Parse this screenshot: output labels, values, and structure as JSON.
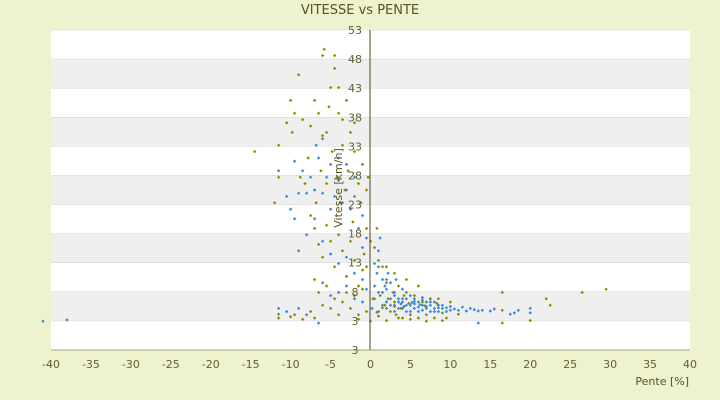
{
  "chart_data": {
    "type": "scatter",
    "title": "VITESSE vs PENTE",
    "xlabel": "Pente [%]",
    "ylabel": "Vitesse [km/h]",
    "xlim": [
      -40,
      40
    ],
    "ylim": [
      3,
      53
    ],
    "xticks": [
      "-40",
      "-35",
      "-30",
      "-25",
      "-20",
      "-15",
      "-10",
      "-5",
      "0",
      "5",
      "10",
      "15",
      "20",
      "25",
      "30",
      "35",
      "40"
    ],
    "yticks": [
      "3",
      "3",
      "8",
      "13",
      "18",
      "23",
      "28",
      "33",
      "38",
      "43",
      "48",
      "53"
    ],
    "grid": "horizontal-bands",
    "legend": "none",
    "colors": {
      "background": "#eef2cf",
      "plot": "#ffffff",
      "band": "#efefef",
      "series1": "#3a86d6",
      "series2": "#8a8a00",
      "axis": "#4a4a20"
    },
    "series": [
      {
        "color": "#3a86d6",
        "points": [
          [
            -41,
            7.5
          ],
          [
            -38,
            7.7
          ],
          [
            -11.5,
            9.5
          ],
          [
            -10.5,
            9
          ],
          [
            -9,
            9.5
          ],
          [
            -8,
            8.5
          ],
          [
            -6.5,
            7.2
          ],
          [
            -11.5,
            31
          ],
          [
            -10.5,
            27
          ],
          [
            -10,
            25
          ],
          [
            -9.5,
            23.5
          ],
          [
            -9.5,
            32.5
          ],
          [
            -9,
            27.5
          ],
          [
            -8.5,
            31
          ],
          [
            -8,
            27.5
          ],
          [
            -7.5,
            30
          ],
          [
            -7,
            28
          ],
          [
            -6.8,
            35
          ],
          [
            -6.5,
            33
          ],
          [
            -6,
            36
          ],
          [
            -6,
            27.5
          ],
          [
            -5.5,
            30
          ],
          [
            -5,
            32
          ],
          [
            -5,
            25
          ],
          [
            -4.5,
            27
          ],
          [
            -4,
            33
          ],
          [
            -4,
            29.5
          ],
          [
            -3.5,
            26
          ],
          [
            -3,
            28
          ],
          [
            -3,
            32
          ],
          [
            -2.5,
            25
          ],
          [
            -2,
            27
          ],
          [
            -2,
            30
          ],
          [
            -1.5,
            22
          ],
          [
            -1,
            24
          ],
          [
            -1,
            19
          ],
          [
            -0.5,
            20.5
          ],
          [
            -9,
            18.5
          ],
          [
            -8,
            21
          ],
          [
            -7,
            23.5
          ],
          [
            -6,
            20
          ],
          [
            -5,
            18
          ],
          [
            -4,
            16.5
          ],
          [
            -3,
            17.5
          ],
          [
            -2,
            15
          ],
          [
            -1,
            14
          ],
          [
            -0.5,
            12.5
          ],
          [
            -6,
            13.5
          ],
          [
            -5,
            11.5
          ],
          [
            -4,
            12
          ],
          [
            -3,
            13
          ],
          [
            -2,
            11
          ],
          [
            -1,
            10.5
          ],
          [
            0.2,
            9.5
          ],
          [
            0.5,
            11
          ],
          [
            0.5,
            13
          ],
          [
            0.8,
            15
          ],
          [
            1,
            16
          ],
          [
            1,
            18.5
          ],
          [
            1.2,
            20.5
          ],
          [
            1.5,
            14
          ],
          [
            1.5,
            12
          ],
          [
            1.8,
            13
          ],
          [
            2,
            10.5
          ],
          [
            2,
            12.5
          ],
          [
            2.2,
            15
          ],
          [
            2.5,
            11
          ],
          [
            2.5,
            13.5
          ],
          [
            3,
            10
          ],
          [
            3,
            12
          ],
          [
            3.2,
            14
          ],
          [
            3.5,
            11
          ],
          [
            3.5,
            9.5
          ],
          [
            4,
            10.5
          ],
          [
            4,
            12.5
          ],
          [
            4.5,
            11
          ],
          [
            4.5,
            9
          ],
          [
            5,
            10
          ],
          [
            5,
            11.5
          ],
          [
            5.5,
            9.5
          ],
          [
            5.5,
            11
          ],
          [
            6,
            10.5
          ],
          [
            6,
            9
          ],
          [
            6.5,
            10
          ],
          [
            6.5,
            11.2
          ],
          [
            7,
            9.5
          ],
          [
            7,
            10.5
          ],
          [
            7.5,
            9
          ],
          [
            7.5,
            10
          ],
          [
            8,
            9.5
          ],
          [
            8,
            10.5
          ],
          [
            8.5,
            9
          ],
          [
            8.5,
            10
          ],
          [
            9,
            9.5
          ],
          [
            9.5,
            9
          ],
          [
            10,
            9.2
          ],
          [
            1,
            9
          ],
          [
            1.5,
            10
          ],
          [
            2,
            9.5
          ],
          [
            2.5,
            10
          ],
          [
            3,
            9
          ],
          [
            3.5,
            10.5
          ],
          [
            4,
            9.5
          ],
          [
            4.5,
            10
          ],
          [
            5,
            9
          ],
          [
            5.5,
            10.2
          ],
          [
            6,
            9.7
          ],
          [
            6.5,
            9.2
          ],
          [
            7,
            9.8
          ],
          [
            7.5,
            10.5
          ],
          [
            8,
            9
          ],
          [
            8.5,
            9.6
          ],
          [
            9,
            10
          ],
          [
            9.5,
            9.6
          ],
          [
            10,
            9.8
          ],
          [
            10.5,
            9.4
          ],
          [
            11,
            9.2
          ],
          [
            11.5,
            9.7
          ],
          [
            12,
            9.1
          ],
          [
            12.5,
            9.5
          ],
          [
            13,
            9.3
          ],
          [
            13.5,
            9.1
          ],
          [
            14,
            9.2
          ],
          [
            15,
            9.1
          ],
          [
            15.5,
            9.4
          ],
          [
            17.5,
            8.6
          ],
          [
            18,
            8.8
          ],
          [
            18.5,
            9.2
          ],
          [
            20,
            8.8
          ],
          [
            20,
            9.5
          ],
          [
            13.5,
            7.2
          ],
          [
            3,
            11.5
          ],
          [
            4,
            11
          ],
          [
            5.5,
            10.6
          ],
          [
            6.5,
            10.8
          ],
          [
            7.5,
            11
          ],
          [
            2,
            14
          ],
          [
            1,
            12
          ],
          [
            0.5,
            16.5
          ],
          [
            3.8,
            10.2
          ],
          [
            4.2,
            9.8
          ],
          [
            5.2,
            10.4
          ],
          [
            6.2,
            10.1
          ]
        ]
      },
      {
        "color": "#8a8a00",
        "points": [
          [
            -11.5,
            8
          ],
          [
            -11.5,
            8.6
          ],
          [
            -10,
            8.2
          ],
          [
            -9.5,
            8.5
          ],
          [
            -8.5,
            7.8
          ],
          [
            -7.5,
            9
          ],
          [
            -7,
            8
          ],
          [
            -14.5,
            34
          ],
          [
            -12,
            26
          ],
          [
            -11.5,
            30
          ],
          [
            -11.5,
            35
          ],
          [
            -10.5,
            38.5
          ],
          [
            -10,
            42
          ],
          [
            -9.8,
            37
          ],
          [
            -9.5,
            40
          ],
          [
            -9,
            46
          ],
          [
            -8.8,
            30
          ],
          [
            -8.5,
            39
          ],
          [
            -8.2,
            29
          ],
          [
            -7.8,
            33
          ],
          [
            -7.5,
            38
          ],
          [
            -7,
            42
          ],
          [
            -6.8,
            26
          ],
          [
            -6.5,
            40
          ],
          [
            -6.2,
            31
          ],
          [
            -6,
            36.5
          ],
          [
            -6,
            49
          ],
          [
            -5.8,
            50
          ],
          [
            -5.5,
            29
          ],
          [
            -5.5,
            37
          ],
          [
            -5.2,
            41
          ],
          [
            -5,
            44
          ],
          [
            -4.8,
            34
          ],
          [
            -4.5,
            47
          ],
          [
            -4.5,
            49
          ],
          [
            -4.2,
            30
          ],
          [
            -4,
            40
          ],
          [
            -4,
            44
          ],
          [
            -3.8,
            26
          ],
          [
            -3.5,
            35
          ],
          [
            -3.5,
            39
          ],
          [
            -3.2,
            28
          ],
          [
            -3,
            42
          ],
          [
            -2.8,
            31
          ],
          [
            -2.5,
            37
          ],
          [
            -2.2,
            23
          ],
          [
            -2,
            34
          ],
          [
            -2,
            38.5
          ],
          [
            -1.5,
            29
          ],
          [
            -1.2,
            26
          ],
          [
            -1,
            32
          ],
          [
            -0.8,
            18
          ],
          [
            -0.5,
            28
          ],
          [
            -0.5,
            22
          ],
          [
            -0.3,
            30
          ],
          [
            0,
            20
          ],
          [
            -7.5,
            24
          ],
          [
            -7,
            22
          ],
          [
            -6.5,
            19.5
          ],
          [
            -6,
            17.5
          ],
          [
            -5.5,
            22.5
          ],
          [
            -5,
            20
          ],
          [
            -4.5,
            16
          ],
          [
            -4,
            21
          ],
          [
            -3.5,
            18.5
          ],
          [
            -3,
            14.5
          ],
          [
            -2.5,
            20
          ],
          [
            -2,
            17
          ],
          [
            -1.5,
            13
          ],
          [
            -1,
            15.5
          ],
          [
            -0.5,
            16
          ],
          [
            -7,
            14
          ],
          [
            -6.5,
            12
          ],
          [
            -6,
            10
          ],
          [
            -5.5,
            13
          ],
          [
            -5,
            9.5
          ],
          [
            -4.5,
            11
          ],
          [
            -4,
            8.5
          ],
          [
            -3.5,
            10.5
          ],
          [
            -3,
            12
          ],
          [
            -2.5,
            9.5
          ],
          [
            -2,
            11.5
          ],
          [
            -1.5,
            8.5
          ],
          [
            -1,
            12.5
          ],
          [
            -0.5,
            9
          ],
          [
            0.3,
            11
          ],
          [
            0.5,
            19
          ],
          [
            0.8,
            22
          ],
          [
            1,
            17
          ],
          [
            1.2,
            11.5
          ],
          [
            1.5,
            16
          ],
          [
            1.8,
            10
          ],
          [
            2,
            13.5
          ],
          [
            2.2,
            11
          ],
          [
            2.5,
            9
          ],
          [
            2.8,
            12
          ],
          [
            3,
            10.5
          ],
          [
            3.2,
            8.5
          ],
          [
            3.5,
            13
          ],
          [
            3.8,
            9.5
          ],
          [
            4,
            8
          ],
          [
            4.2,
            11.5
          ],
          [
            4.5,
            12
          ],
          [
            5,
            8.5
          ],
          [
            5.5,
            11.5
          ],
          [
            6,
            8
          ],
          [
            6.5,
            10.5
          ],
          [
            7,
            8.5
          ],
          [
            7.5,
            11
          ],
          [
            8,
            8
          ],
          [
            8.5,
            11
          ],
          [
            9,
            8.8
          ],
          [
            9.5,
            8
          ],
          [
            10,
            10.5
          ],
          [
            11,
            8.6
          ],
          [
            2,
            16
          ],
          [
            3,
            15
          ],
          [
            4.5,
            14
          ],
          [
            6,
            13
          ],
          [
            16.5,
            9.2
          ],
          [
            16.5,
            12
          ],
          [
            16.5,
            7.2
          ],
          [
            20,
            7.6
          ],
          [
            22,
            11
          ],
          [
            22.5,
            10
          ],
          [
            26.5,
            12
          ],
          [
            29.5,
            12.5
          ],
          [
            -1.5,
            7.8
          ],
          [
            0,
            7.5
          ],
          [
            1,
            8.3
          ],
          [
            2,
            7.6
          ],
          [
            3.5,
            8
          ],
          [
            5,
            7.8
          ],
          [
            7,
            7.5
          ],
          [
            9,
            7.6
          ],
          [
            0.8,
            8.9
          ],
          [
            1.5,
            9.6
          ],
          [
            3,
            9.8
          ],
          [
            4.8,
            10.3
          ],
          [
            6.8,
            9.9
          ],
          [
            8.3,
            10.3
          ]
        ]
      }
    ]
  }
}
